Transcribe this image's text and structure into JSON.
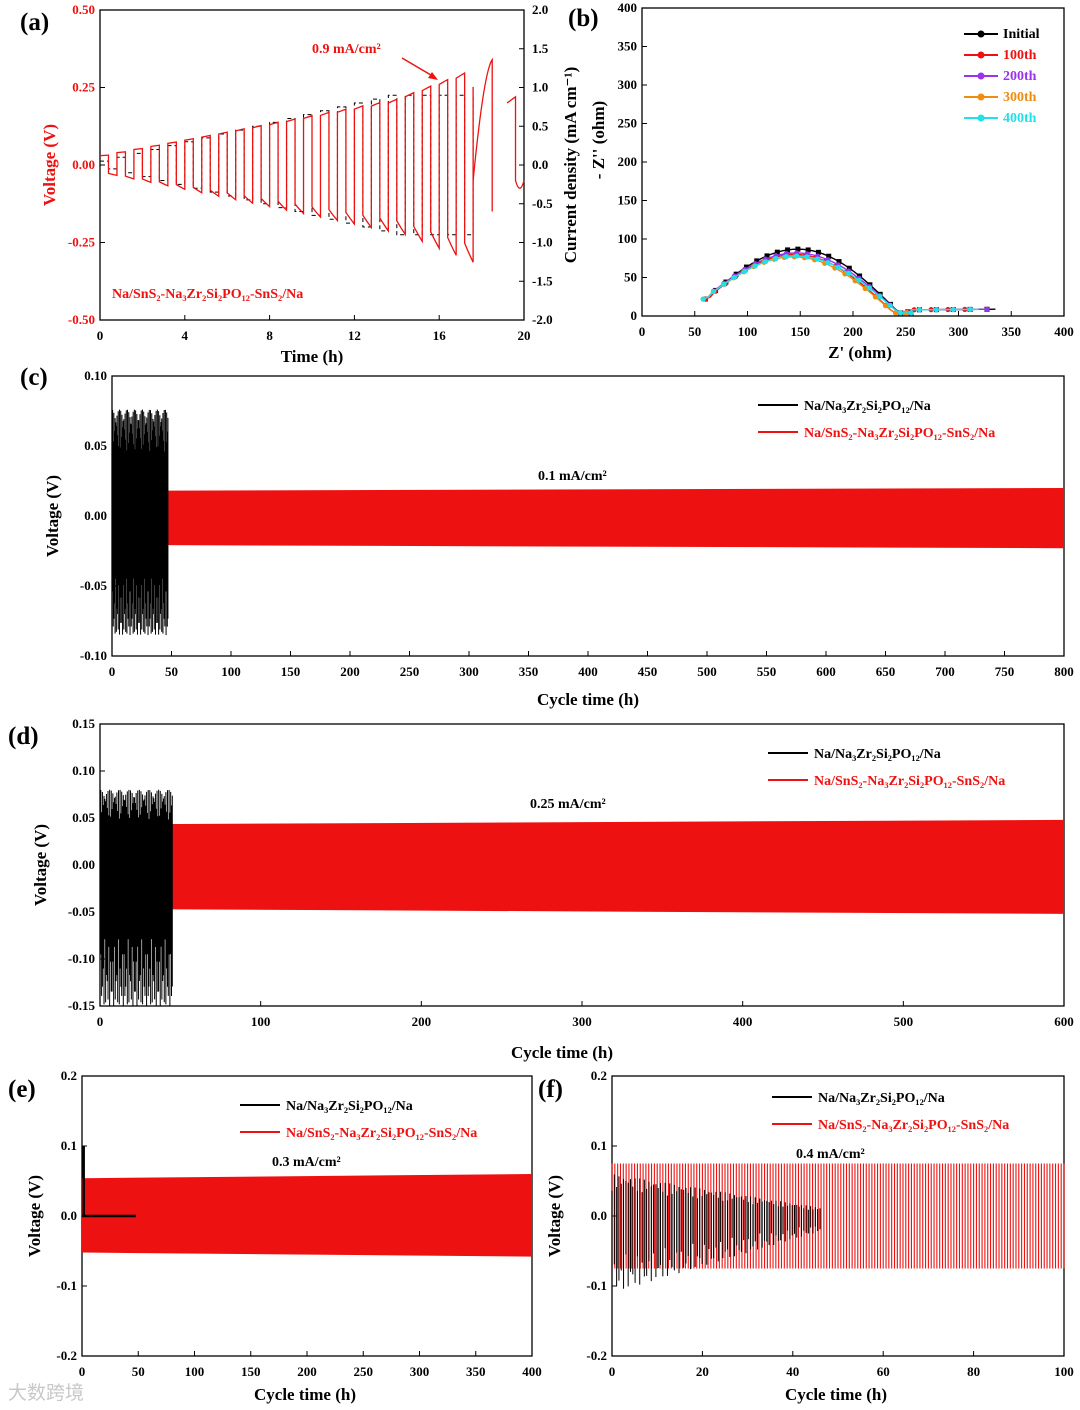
{
  "watermark": "大数跨境",
  "colors": {
    "black": "#000000",
    "red": "#ee1111",
    "purple": "#9a33ee",
    "orange": "#f08c10",
    "cyan": "#22e0e8"
  },
  "panels": {
    "a": {
      "label": "(a)",
      "xlabel": "Time (h)",
      "ylabel_left": "Voltage (V)",
      "ylabel_right": "Current density (mA cm⁻¹)",
      "annotation": "0.9 mA/cm²",
      "cell_label": "Na/SnS₂-Na₃Zr₂Si₂PO₁₂-SnS₂/Na",
      "xticks": [
        "0",
        "4",
        "8",
        "12",
        "16",
        "20"
      ],
      "yticks_left": [
        "-0.50",
        "-0.25",
        "0.00",
        "0.25",
        "0.50"
      ],
      "yticks_right": [
        "-2.0",
        "-1.5",
        "-1.0",
        "-0.5",
        "0.0",
        "0.5",
        "1.0",
        "1.5",
        "2.0"
      ]
    },
    "b": {
      "label": "(b)",
      "xlabel": "Z' (ohm)",
      "ylabel": "- Z'' (ohm)",
      "xticks": [
        "0",
        "50",
        "100",
        "150",
        "200",
        "250",
        "300",
        "350",
        "400"
      ],
      "yticks": [
        "0",
        "50",
        "100",
        "150",
        "200",
        "250",
        "300",
        "350",
        "400"
      ],
      "legend": [
        "Initial",
        "100th",
        "200th",
        "300th",
        "400th"
      ]
    },
    "c": {
      "label": "(c)",
      "xlabel": "Cycle time (h)",
      "ylabel": "Voltage (V)",
      "annotation": "0.1 mA/cm²",
      "legend": [
        "Na/Na₃Zr₂Si₂PO₁₂/Na",
        "Na/SnS₂-Na₃Zr₂Si₂PO₁₂-SnS₂/Na"
      ],
      "xticks": [
        "0",
        "50",
        "100",
        "150",
        "200",
        "250",
        "300",
        "350",
        "400",
        "450",
        "500",
        "550",
        "600",
        "650",
        "700",
        "750",
        "800"
      ],
      "yticks": [
        "-0.10",
        "-0.05",
        "0.00",
        "0.05",
        "0.10"
      ]
    },
    "d": {
      "label": "(d)",
      "xlabel": "Cycle time (h)",
      "ylabel": "Voltage (V)",
      "annotation": "0.25 mA/cm²",
      "legend": [
        "Na/Na₃Zr₂Si₂PO₁₂/Na",
        "Na/SnS₂-Na₃Zr₂Si₂PO₁₂-SnS₂/Na"
      ],
      "xticks": [
        "0",
        "100",
        "200",
        "300",
        "400",
        "500",
        "600"
      ],
      "yticks": [
        "-0.15",
        "-0.10",
        "-0.05",
        "0.00",
        "0.05",
        "0.10",
        "0.15"
      ]
    },
    "e": {
      "label": "(e)",
      "xlabel": "Cycle time (h)",
      "ylabel": "Voltage (V)",
      "annotation": "0.3 mA/cm²",
      "legend": [
        "Na/Na₃Zr₂Si₂PO₁₂/Na",
        "Na/SnS₂-Na₃Zr₂Si₂PO₁₂-SnS₂/Na"
      ],
      "xticks": [
        "0",
        "50",
        "100",
        "150",
        "200",
        "250",
        "300",
        "350",
        "400"
      ],
      "yticks": [
        "-0.2",
        "-0.1",
        "0.0",
        "0.1",
        "0.2"
      ]
    },
    "f": {
      "label": "(f)",
      "xlabel": "Cycle time (h)",
      "ylabel": "Voltage (V)",
      "annotation": "0.4 mA/cm²",
      "legend": [
        "Na/Na₃Zr₂Si₂PO₁₂/Na",
        "Na/SnS₂-Na₃Zr₂Si₂PO₁₂-SnS₂/Na"
      ],
      "xticks": [
        "0",
        "20",
        "40",
        "60",
        "80",
        "100"
      ],
      "yticks": [
        "-0.2",
        "-0.1",
        "0.0",
        "0.1",
        "0.2"
      ]
    }
  },
  "chart_data": [
    {
      "panel": "a",
      "type": "line",
      "title": "",
      "xlabel": "Time (h)",
      "ylabel": "Voltage (V)",
      "y2label": "Current density (mA cm-1)",
      "xlim": [
        0,
        20
      ],
      "ylim": [
        -0.5,
        0.5
      ],
      "y2lim": [
        -2.0,
        2.0
      ],
      "series": [
        {
          "name": "Voltage",
          "color": "red",
          "x": [
            0.4,
            1.2,
            2.0,
            2.8,
            3.6,
            4.4,
            5.2,
            6.0,
            6.8,
            7.6,
            8.4,
            9.2,
            10.0,
            10.8,
            11.6,
            12.4,
            13.2,
            14.0,
            14.8,
            15.6,
            16.4,
            17.2
          ],
          "peak_v": [
            0.03,
            0.04,
            0.05,
            0.06,
            0.07,
            0.08,
            0.09,
            0.1,
            0.11,
            0.12,
            0.13,
            0.14,
            0.15,
            0.16,
            0.17,
            0.18,
            0.19,
            0.2,
            0.22,
            0.24,
            0.26,
            0.28
          ]
        },
        {
          "name": "Current density",
          "color": "black",
          "style": "dashed",
          "x": [
            0.4,
            1.2,
            2.0,
            2.8,
            3.6,
            4.4,
            5.2,
            6.0,
            6.8,
            7.6,
            8.4,
            9.2,
            10.0,
            10.8,
            11.6,
            12.4,
            13.2,
            14.0,
            14.8,
            15.6,
            16.4,
            17.2
          ],
          "current": [
            0.05,
            0.1,
            0.15,
            0.2,
            0.25,
            0.3,
            0.35,
            0.4,
            0.45,
            0.5,
            0.55,
            0.6,
            0.65,
            0.7,
            0.75,
            0.8,
            0.85,
            0.9,
            0.9,
            0.9,
            0.9,
            0.9
          ]
        }
      ]
    },
    {
      "panel": "b",
      "type": "scatter",
      "xlabel": "Z' (ohm)",
      "ylabel": "- Z'' (ohm)",
      "xlim": [
        0,
        400
      ],
      "ylim": [
        0,
        400
      ],
      "series": [
        {
          "name": "Initial",
          "color": "black",
          "x0": 60,
          "x1": 335,
          "peak_x": 150,
          "peak_y": 75,
          "end_x": 255
        },
        {
          "name": "100th",
          "color": "red",
          "x0": 60,
          "x1": 320,
          "peak_x": 140,
          "peak_y": 68,
          "end_x": 250
        },
        {
          "name": "200th",
          "color": "purple",
          "x0": 58,
          "x1": 328,
          "peak_x": 145,
          "peak_y": 70,
          "end_x": 255
        },
        {
          "name": "300th",
          "color": "orange",
          "x0": 58,
          "x1": 255,
          "peak_x": 135,
          "peak_y": 65,
          "end_x": 250
        },
        {
          "name": "400th",
          "color": "cyan",
          "x0": 58,
          "x1": 320,
          "peak_x": 140,
          "peak_y": 66,
          "end_x": 255
        }
      ]
    },
    {
      "panel": "c",
      "type": "area",
      "xlim": [
        0,
        800
      ],
      "ylim": [
        -0.1,
        0.1
      ],
      "series": [
        {
          "name": "Na/Na3Zr2Si2PO12/Na",
          "color": "black",
          "x_end": 47,
          "max": 0.076,
          "min": -0.085
        },
        {
          "name": "Na/SnS2-Na3Zr2Si2PO12-SnS2/Na",
          "color": "red",
          "x_end": 800,
          "max": 0.02,
          "min": -0.023
        }
      ]
    },
    {
      "panel": "d",
      "type": "area",
      "xlim": [
        0,
        600
      ],
      "ylim": [
        -0.15,
        0.15
      ],
      "series": [
        {
          "name": "Na/Na3Zr2Si2PO12/Na",
          "color": "black",
          "x_end": 45,
          "max": 0.08,
          "min": -0.15
        },
        {
          "name": "Na/SnS2-Na3Zr2Si2PO12-SnS2/Na",
          "color": "red",
          "x_end": 600,
          "max": 0.048,
          "min": -0.052
        }
      ]
    },
    {
      "panel": "e",
      "type": "area",
      "xlim": [
        0,
        400
      ],
      "ylim": [
        -0.2,
        0.2
      ],
      "series": [
        {
          "name": "Na/Na3Zr2Si2PO12/Na",
          "color": "black",
          "x_end": 48,
          "max": 0.1,
          "min": 0.0
        },
        {
          "name": "Na/SnS2-Na3Zr2Si2PO12-SnS2/Na",
          "color": "red",
          "x_end": 400,
          "max": 0.06,
          "min": -0.058
        }
      ]
    },
    {
      "panel": "f",
      "type": "line",
      "xlim": [
        0,
        100
      ],
      "ylim": [
        -0.2,
        0.2
      ],
      "series": [
        {
          "name": "Na/Na3Zr2Si2PO12/Na",
          "color": "black",
          "x_end": 46,
          "max": 0.06,
          "min": -0.11
        },
        {
          "name": "Na/SnS2-Na3Zr2Si2PO12-SnS2/Na",
          "color": "red",
          "x_end": 100,
          "max": 0.075,
          "min": -0.075
        }
      ]
    }
  ]
}
